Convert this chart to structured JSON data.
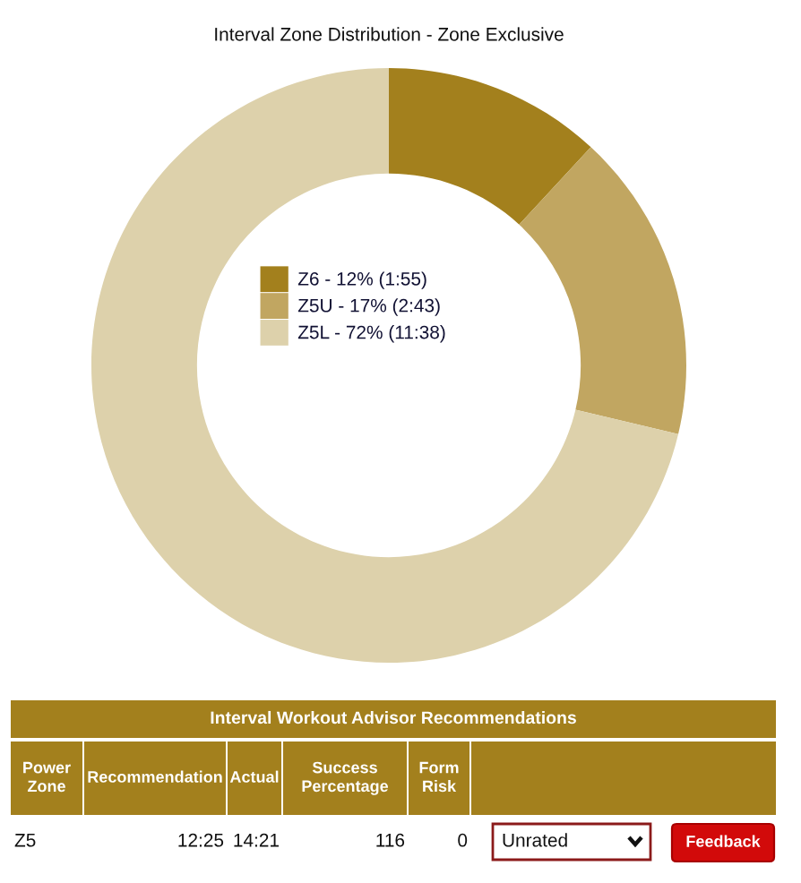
{
  "chart_data": [
    {
      "type": "donut",
      "title": "Interval Zone Distribution - Zone Exclusive",
      "categories": [
        "Z6 - 12% (1:55)",
        "Z5U - 17% (2:43)",
        "Z5L - 72% (11:38)"
      ],
      "values": [
        12,
        17,
        72
      ],
      "colors": [
        "#a3801d",
        "#c1a661",
        "#ddd1ab"
      ],
      "legend": "center"
    },
    {
      "type": "other",
      "title": "Interval Workout Advisor Recommendations",
      "categories": [
        "Power Zone",
        "Recommendation",
        "Actual",
        "Success Percentage",
        "Form Risk",
        null
      ],
      "annotations": [
        "Z5",
        "12:25",
        "14:21",
        "116",
        "0",
        "Unrated",
        "Feedback"
      ]
    }
  ]
}
